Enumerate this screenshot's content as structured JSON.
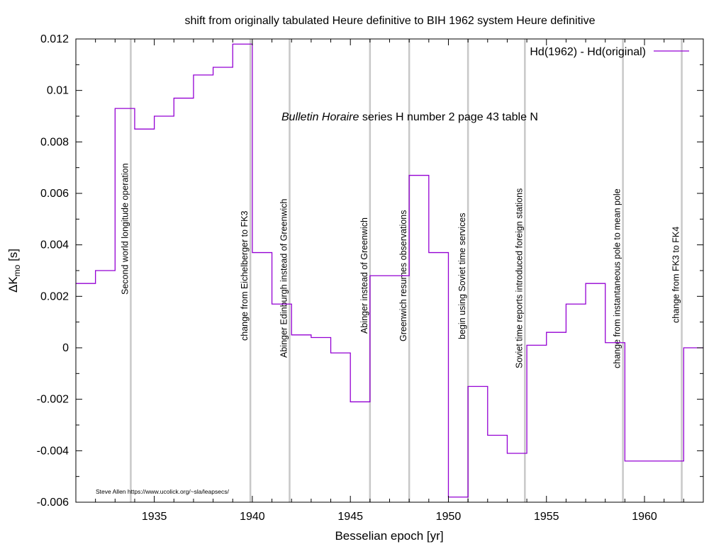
{
  "chart_data": {
    "type": "line",
    "title": "shift from originally tabulated Heure definitive to BIH 1962 system Heure definitive",
    "xlabel": "Besselian epoch [yr]",
    "ylabel_main": "ΔK",
    "ylabel_sub": "mo",
    "ylabel_unit": " [s]",
    "xlim": [
      1931,
      1963
    ],
    "ylim": [
      -0.006,
      0.012
    ],
    "x_ticks": [
      1935,
      1940,
      1945,
      1950,
      1955,
      1960
    ],
    "x_tick_labels": [
      "1935",
      "1940",
      "1945",
      "1950",
      "1955",
      "1960"
    ],
    "y_ticks": [
      -0.006,
      -0.004,
      -0.002,
      0,
      0.002,
      0.004,
      0.006,
      0.008,
      0.01,
      0.012
    ],
    "y_tick_labels": [
      "-0.006",
      "-0.004",
      "-0.002",
      "0",
      "0.002",
      "0.004",
      "0.006",
      "0.008",
      "0.01",
      "0.012"
    ],
    "grid": false,
    "legend_position": "top-right",
    "series": [
      {
        "name": "Hd(1962) - Hd(original)",
        "color": "#9400d3",
        "step": true,
        "x": [
          1931,
          1932,
          1933,
          1934,
          1935,
          1936,
          1937,
          1938,
          1939,
          1940,
          1941,
          1942,
          1943,
          1944,
          1945,
          1946,
          1948,
          1949,
          1950,
          1951,
          1952,
          1953,
          1954,
          1955,
          1956,
          1957,
          1958,
          1959,
          1962
        ],
        "y": [
          0.0025,
          0.003,
          0.0093,
          0.0085,
          0.009,
          0.0097,
          0.0106,
          0.0109,
          0.0118,
          0.0037,
          0.0017,
          0.0005,
          0.0004,
          -0.0002,
          -0.0021,
          0.0028,
          0.0067,
          0.0037,
          -0.0058,
          -0.0015,
          -0.0034,
          -0.0041,
          0.0001,
          0.0006,
          0.0017,
          0.0025,
          0.0002,
          -0.0044,
          0.0
        ],
        "end_x": 1963
      }
    ],
    "vertical_lines": [
      {
        "x": 1933.8,
        "label": "Second world longitude operation"
      },
      {
        "x": 1939.9,
        "label": "change from Eichelberger to FK3"
      },
      {
        "x": 1941.9,
        "label": "Abinger  Edinburgh instead of Greenwich"
      },
      {
        "x": 1946.0,
        "label": "Abinger instead of Greenwich"
      },
      {
        "x": 1948.0,
        "label": "Greenwich resumes observations"
      },
      {
        "x": 1951.0,
        "label": "begin using Soviet time services"
      },
      {
        "x": 1953.9,
        "label": "Soviet time reports introduced foreign stations"
      },
      {
        "x": 1958.9,
        "label": "change from instantaneous pole to mean pole"
      },
      {
        "x": 1961.9,
        "label": "change from FK3 to FK4"
      }
    ],
    "vertical_line_color": "#c8c8c8",
    "annotation_italic": "Bulletin Horaire",
    "annotation_rest": " series H number 2 page 43 table N",
    "credit": "Steve Allen  https://www.ucolick.org/~sla/leapsecs/"
  }
}
